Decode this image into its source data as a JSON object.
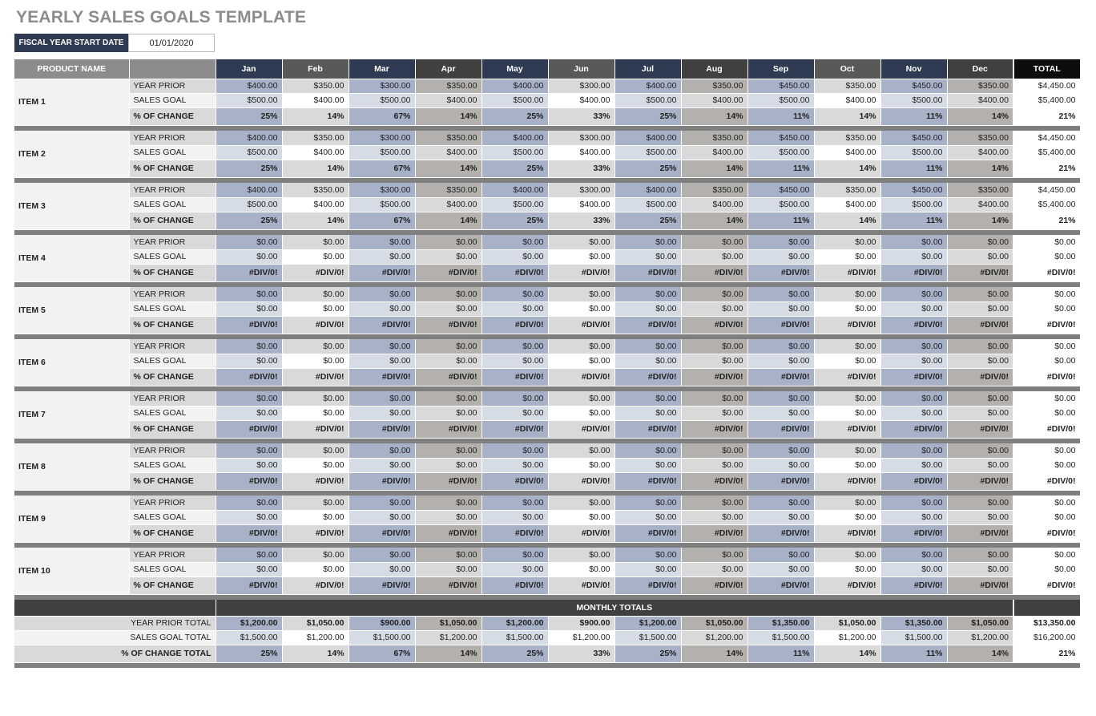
{
  "title": "YEARLY SALES GOALS TEMPLATE",
  "fiscal_year": {
    "label": "FISCAL YEAR START DATE",
    "value": "01/01/2020"
  },
  "header": {
    "product_name": "PRODUCT NAME",
    "months": [
      "Jan",
      "Feb",
      "Mar",
      "Apr",
      "May",
      "Jun",
      "Jul",
      "Aug",
      "Sep",
      "Oct",
      "Nov",
      "Dec"
    ],
    "total": "TOTAL"
  },
  "row_labels": {
    "year_prior": "YEAR PRIOR",
    "sales_goal": "SALES GOAL",
    "pct_change": "% OF CHANGE"
  },
  "colors": {
    "month_headers": [
      "#2f3b52",
      "#595959",
      "#2f3b52",
      "#404040",
      "#2f3b52",
      "#595959",
      "#2f3b52",
      "#404040",
      "#2f3b52",
      "#595959",
      "#2f3b52",
      "#404040"
    ],
    "cell_dark": [
      "#a7b1c7",
      "#d9d9d9",
      "#a7b1c7",
      "#b3b0ad",
      "#a7b1c7",
      "#d9d9d9",
      "#a7b1c7",
      "#b3b0ad",
      "#a7b1c7",
      "#d9d9d9",
      "#a7b1c7",
      "#b3b0ad"
    ],
    "cell_light": [
      "#d6dce6",
      "#ffffff",
      "#d6dce6",
      "#d9d9d9",
      "#d6dce6",
      "#ffffff",
      "#d6dce6",
      "#d9d9d9",
      "#d6dce6",
      "#ffffff",
      "#d6dce6",
      "#d9d9d9"
    ]
  },
  "items": [
    {
      "name": "ITEM 1",
      "year_prior": [
        "$400.00",
        "$350.00",
        "$300.00",
        "$350.00",
        "$400.00",
        "$300.00",
        "$400.00",
        "$350.00",
        "$450.00",
        "$350.00",
        "$450.00",
        "$350.00"
      ],
      "sales_goal": [
        "$500.00",
        "$400.00",
        "$500.00",
        "$400.00",
        "$500.00",
        "$400.00",
        "$500.00",
        "$400.00",
        "$500.00",
        "$400.00",
        "$500.00",
        "$400.00"
      ],
      "pct_change": [
        "25%",
        "14%",
        "67%",
        "14%",
        "25%",
        "33%",
        "25%",
        "14%",
        "11%",
        "14%",
        "11%",
        "14%"
      ],
      "totals": [
        "$4,450.00",
        "$5,400.00",
        "21%"
      ]
    },
    {
      "name": "ITEM 2",
      "year_prior": [
        "$400.00",
        "$350.00",
        "$300.00",
        "$350.00",
        "$400.00",
        "$300.00",
        "$400.00",
        "$350.00",
        "$450.00",
        "$350.00",
        "$450.00",
        "$350.00"
      ],
      "sales_goal": [
        "$500.00",
        "$400.00",
        "$500.00",
        "$400.00",
        "$500.00",
        "$400.00",
        "$500.00",
        "$400.00",
        "$500.00",
        "$400.00",
        "$500.00",
        "$400.00"
      ],
      "pct_change": [
        "25%",
        "14%",
        "67%",
        "14%",
        "25%",
        "33%",
        "25%",
        "14%",
        "11%",
        "14%",
        "11%",
        "14%"
      ],
      "totals": [
        "$4,450.00",
        "$5,400.00",
        "21%"
      ]
    },
    {
      "name": "ITEM 3",
      "year_prior": [
        "$400.00",
        "$350.00",
        "$300.00",
        "$350.00",
        "$400.00",
        "$300.00",
        "$400.00",
        "$350.00",
        "$450.00",
        "$350.00",
        "$450.00",
        "$350.00"
      ],
      "sales_goal": [
        "$500.00",
        "$400.00",
        "$500.00",
        "$400.00",
        "$500.00",
        "$400.00",
        "$500.00",
        "$400.00",
        "$500.00",
        "$400.00",
        "$500.00",
        "$400.00"
      ],
      "pct_change": [
        "25%",
        "14%",
        "67%",
        "14%",
        "25%",
        "33%",
        "25%",
        "14%",
        "11%",
        "14%",
        "11%",
        "14%"
      ],
      "totals": [
        "$4,450.00",
        "$5,400.00",
        "21%"
      ]
    },
    {
      "name": "ITEM 4",
      "year_prior": [
        "$0.00",
        "$0.00",
        "$0.00",
        "$0.00",
        "$0.00",
        "$0.00",
        "$0.00",
        "$0.00",
        "$0.00",
        "$0.00",
        "$0.00",
        "$0.00"
      ],
      "sales_goal": [
        "$0.00",
        "$0.00",
        "$0.00",
        "$0.00",
        "$0.00",
        "$0.00",
        "$0.00",
        "$0.00",
        "$0.00",
        "$0.00",
        "$0.00",
        "$0.00"
      ],
      "pct_change": [
        "#DIV/0!",
        "#DIV/0!",
        "#DIV/0!",
        "#DIV/0!",
        "#DIV/0!",
        "#DIV/0!",
        "#DIV/0!",
        "#DIV/0!",
        "#DIV/0!",
        "#DIV/0!",
        "#DIV/0!",
        "#DIV/0!"
      ],
      "totals": [
        "$0.00",
        "$0.00",
        "#DIV/0!"
      ]
    },
    {
      "name": "ITEM 5",
      "year_prior": [
        "$0.00",
        "$0.00",
        "$0.00",
        "$0.00",
        "$0.00",
        "$0.00",
        "$0.00",
        "$0.00",
        "$0.00",
        "$0.00",
        "$0.00",
        "$0.00"
      ],
      "sales_goal": [
        "$0.00",
        "$0.00",
        "$0.00",
        "$0.00",
        "$0.00",
        "$0.00",
        "$0.00",
        "$0.00",
        "$0.00",
        "$0.00",
        "$0.00",
        "$0.00"
      ],
      "pct_change": [
        "#DIV/0!",
        "#DIV/0!",
        "#DIV/0!",
        "#DIV/0!",
        "#DIV/0!",
        "#DIV/0!",
        "#DIV/0!",
        "#DIV/0!",
        "#DIV/0!",
        "#DIV/0!",
        "#DIV/0!",
        "#DIV/0!"
      ],
      "totals": [
        "$0.00",
        "$0.00",
        "#DIV/0!"
      ]
    },
    {
      "name": "ITEM 6",
      "year_prior": [
        "$0.00",
        "$0.00",
        "$0.00",
        "$0.00",
        "$0.00",
        "$0.00",
        "$0.00",
        "$0.00",
        "$0.00",
        "$0.00",
        "$0.00",
        "$0.00"
      ],
      "sales_goal": [
        "$0.00",
        "$0.00",
        "$0.00",
        "$0.00",
        "$0.00",
        "$0.00",
        "$0.00",
        "$0.00",
        "$0.00",
        "$0.00",
        "$0.00",
        "$0.00"
      ],
      "pct_change": [
        "#DIV/0!",
        "#DIV/0!",
        "#DIV/0!",
        "#DIV/0!",
        "#DIV/0!",
        "#DIV/0!",
        "#DIV/0!",
        "#DIV/0!",
        "#DIV/0!",
        "#DIV/0!",
        "#DIV/0!",
        "#DIV/0!"
      ],
      "totals": [
        "$0.00",
        "$0.00",
        "#DIV/0!"
      ]
    },
    {
      "name": "ITEM 7",
      "year_prior": [
        "$0.00",
        "$0.00",
        "$0.00",
        "$0.00",
        "$0.00",
        "$0.00",
        "$0.00",
        "$0.00",
        "$0.00",
        "$0.00",
        "$0.00",
        "$0.00"
      ],
      "sales_goal": [
        "$0.00",
        "$0.00",
        "$0.00",
        "$0.00",
        "$0.00",
        "$0.00",
        "$0.00",
        "$0.00",
        "$0.00",
        "$0.00",
        "$0.00",
        "$0.00"
      ],
      "pct_change": [
        "#DIV/0!",
        "#DIV/0!",
        "#DIV/0!",
        "#DIV/0!",
        "#DIV/0!",
        "#DIV/0!",
        "#DIV/0!",
        "#DIV/0!",
        "#DIV/0!",
        "#DIV/0!",
        "#DIV/0!",
        "#DIV/0!"
      ],
      "totals": [
        "$0.00",
        "$0.00",
        "#DIV/0!"
      ]
    },
    {
      "name": "ITEM 8",
      "year_prior": [
        "$0.00",
        "$0.00",
        "$0.00",
        "$0.00",
        "$0.00",
        "$0.00",
        "$0.00",
        "$0.00",
        "$0.00",
        "$0.00",
        "$0.00",
        "$0.00"
      ],
      "sales_goal": [
        "$0.00",
        "$0.00",
        "$0.00",
        "$0.00",
        "$0.00",
        "$0.00",
        "$0.00",
        "$0.00",
        "$0.00",
        "$0.00",
        "$0.00",
        "$0.00"
      ],
      "pct_change": [
        "#DIV/0!",
        "#DIV/0!",
        "#DIV/0!",
        "#DIV/0!",
        "#DIV/0!",
        "#DIV/0!",
        "#DIV/0!",
        "#DIV/0!",
        "#DIV/0!",
        "#DIV/0!",
        "#DIV/0!",
        "#DIV/0!"
      ],
      "totals": [
        "$0.00",
        "$0.00",
        "#DIV/0!"
      ]
    },
    {
      "name": "ITEM 9",
      "year_prior": [
        "$0.00",
        "$0.00",
        "$0.00",
        "$0.00",
        "$0.00",
        "$0.00",
        "$0.00",
        "$0.00",
        "$0.00",
        "$0.00",
        "$0.00",
        "$0.00"
      ],
      "sales_goal": [
        "$0.00",
        "$0.00",
        "$0.00",
        "$0.00",
        "$0.00",
        "$0.00",
        "$0.00",
        "$0.00",
        "$0.00",
        "$0.00",
        "$0.00",
        "$0.00"
      ],
      "pct_change": [
        "#DIV/0!",
        "#DIV/0!",
        "#DIV/0!",
        "#DIV/0!",
        "#DIV/0!",
        "#DIV/0!",
        "#DIV/0!",
        "#DIV/0!",
        "#DIV/0!",
        "#DIV/0!",
        "#DIV/0!",
        "#DIV/0!"
      ],
      "totals": [
        "$0.00",
        "$0.00",
        "#DIV/0!"
      ]
    },
    {
      "name": "ITEM 10",
      "year_prior": [
        "$0.00",
        "$0.00",
        "$0.00",
        "$0.00",
        "$0.00",
        "$0.00",
        "$0.00",
        "$0.00",
        "$0.00",
        "$0.00",
        "$0.00",
        "$0.00"
      ],
      "sales_goal": [
        "$0.00",
        "$0.00",
        "$0.00",
        "$0.00",
        "$0.00",
        "$0.00",
        "$0.00",
        "$0.00",
        "$0.00",
        "$0.00",
        "$0.00",
        "$0.00"
      ],
      "pct_change": [
        "#DIV/0!",
        "#DIV/0!",
        "#DIV/0!",
        "#DIV/0!",
        "#DIV/0!",
        "#DIV/0!",
        "#DIV/0!",
        "#DIV/0!",
        "#DIV/0!",
        "#DIV/0!",
        "#DIV/0!",
        "#DIV/0!"
      ],
      "totals": [
        "$0.00",
        "$0.00",
        "#DIV/0!"
      ]
    }
  ],
  "monthly_totals": {
    "title": "MONTHLY TOTALS",
    "year_prior_total": {
      "label": "YEAR PRIOR TOTAL",
      "values": [
        "$1,200.00",
        "$1,050.00",
        "$900.00",
        "$1,050.00",
        "$1,200.00",
        "$900.00",
        "$1,200.00",
        "$1,050.00",
        "$1,350.00",
        "$1,050.00",
        "$1,350.00",
        "$1,050.00"
      ],
      "total": "$13,350.00"
    },
    "sales_goal_total": {
      "label": "SALES GOAL TOTAL",
      "values": [
        "$1,500.00",
        "$1,200.00",
        "$1,500.00",
        "$1,200.00",
        "$1,500.00",
        "$1,200.00",
        "$1,500.00",
        "$1,200.00",
        "$1,500.00",
        "$1,200.00",
        "$1,500.00",
        "$1,200.00"
      ],
      "total": "$16,200.00"
    },
    "pct_change_total": {
      "label": "% OF CHANGE TOTAL",
      "values": [
        "25%",
        "14%",
        "67%",
        "14%",
        "25%",
        "33%",
        "25%",
        "14%",
        "11%",
        "14%",
        "11%",
        "14%"
      ],
      "total": "21%"
    }
  }
}
